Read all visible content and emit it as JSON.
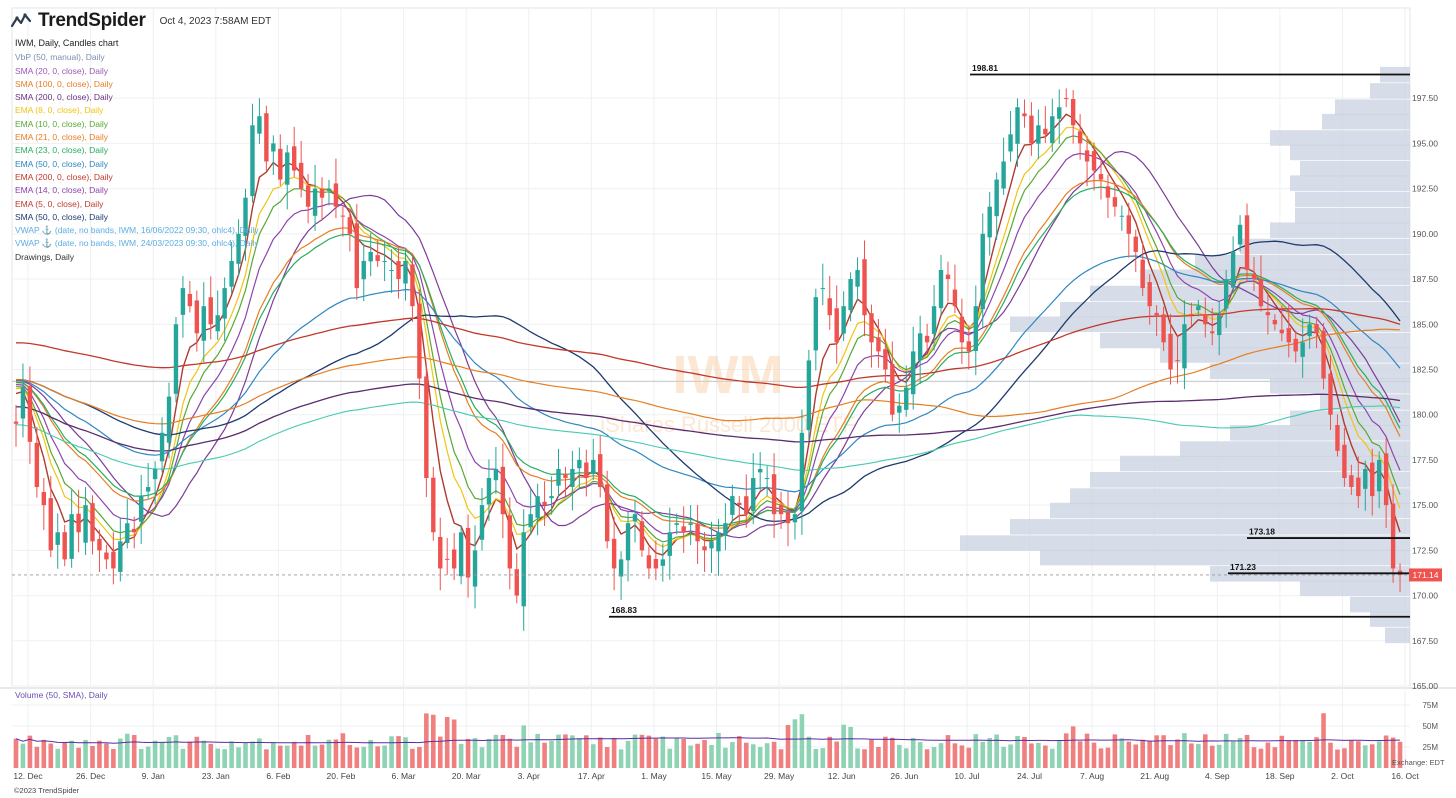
{
  "header": {
    "logo": "TrendSpider",
    "timestamp": "Oct 4, 2023 7:58AM EDT"
  },
  "legend": {
    "symbol_line": "IWM, Daily, Candles chart",
    "items": [
      {
        "label": "VbP (50, manual), Daily",
        "color": "#7b8fb0"
      },
      {
        "label": "SMA (20, 0, close), Daily",
        "color": "#9b59b6"
      },
      {
        "label": "SMA (100, 0, close), Daily",
        "color": "#e67e22"
      },
      {
        "label": "SMA (200, 0, close), Daily",
        "color": "#6c3483"
      },
      {
        "label": "EMA (8, 0, close), Daily",
        "color": "#f1c40f"
      },
      {
        "label": "EMA (10, 0, close), Daily",
        "color": "#58a832"
      },
      {
        "label": "EMA (21, 0, close), Daily",
        "color": "#e67e22"
      },
      {
        "label": "EMA (23, 0, close), Daily",
        "color": "#27ae60"
      },
      {
        "label": "EMA (50, 0, close), Daily",
        "color": "#2e86c1"
      },
      {
        "label": "EMA (200, 0, close), Daily",
        "color": "#c0392b"
      },
      {
        "label": "EMA (14, 0, close), Daily",
        "color": "#8e44ad"
      },
      {
        "label": "EMA (5, 0, close), Daily",
        "color": "#c0392b"
      },
      {
        "label": "SMA (50, 0, close), Daily",
        "color": "#1f3a6e"
      },
      {
        "label": "VWAP ⚓ (date, no bands, IWM, 16/06/2022 09:30, ohlc4), Daily",
        "color": "#5dade2"
      },
      {
        "label": "VWAP ⚓ (date, no bands, IWM, 24/03/2023 09:30, ohlc4), Daily",
        "color": "#5dade2"
      },
      {
        "label": "Drawings, Daily",
        "color": "#333333"
      }
    ]
  },
  "watermark": {
    "ticker": "IWM",
    "name": "iShares Russell 2000 ETF"
  },
  "volume_label": "Volume (50, SMA), Daily",
  "copyright": "©2023 TrendSpider",
  "exchange_label": "Exchange: EDT",
  "colors": {
    "up": "#26a69a",
    "down": "#ef5350",
    "vol_up": "#8fd3b5",
    "vol_down": "#f08080",
    "vbp": "#c9d2e0"
  },
  "chart_data": {
    "type": "candlestick",
    "price_axis": {
      "ticks": [
        "197.50",
        "195.00",
        "192.50",
        "190.00",
        "187.50",
        "185.00",
        "182.50",
        "180.00",
        "177.50",
        "175.00",
        "172.50",
        "170.00",
        "167.50",
        "165.00"
      ],
      "range": [
        165.0,
        199.5
      ]
    },
    "volume_axis": {
      "ticks": [
        "75M",
        "50M",
        "25M"
      ],
      "range": [
        0,
        75
      ]
    },
    "x_axis": {
      "labels": [
        "12. Dec",
        "26. Dec",
        "9. Jan",
        "23. Jan",
        "6. Feb",
        "20. Feb",
        "6. Mar",
        "20. Mar",
        "3. Apr",
        "17. Apr",
        "1. May",
        "15. May",
        "29. May",
        "12. Jun",
        "26. Jun",
        "10. Jul",
        "24. Jul",
        "7. Aug",
        "21. Aug",
        "4. Sep",
        "18. Sep",
        "2. Oct",
        "16. Oct"
      ],
      "label_trading_index": [
        0,
        9,
        18,
        27,
        36,
        45,
        54,
        63,
        72,
        81,
        90,
        99,
        108,
        117,
        126,
        135,
        144,
        153,
        162,
        171,
        180,
        189,
        198
      ]
    },
    "last_price": {
      "label": "171.14",
      "value": 171.14
    },
    "horizontal_levels": [
      {
        "label": "198.81",
        "value": 198.81
      },
      {
        "label": "173.18",
        "value": 173.18
      },
      {
        "label": "171.23",
        "value": 171.23
      },
      {
        "label": "168.83",
        "value": 168.83
      }
    ],
    "reference_line": 181.85,
    "closes": [
      179.5,
      181.5,
      178.5,
      176,
      175,
      172.5,
      173.5,
      172,
      174.5,
      173.5,
      175,
      173,
      172.5,
      172,
      171.5,
      173,
      174,
      173.5,
      175.5,
      176,
      177,
      179,
      181,
      185,
      187,
      186,
      184.5,
      186,
      185,
      185.5,
      187,
      188.5,
      190,
      192,
      196,
      196.5,
      194,
      195,
      193,
      194.5,
      193.5,
      192.5,
      191.5,
      192.5,
      192,
      192.5,
      191.5,
      191,
      190,
      187,
      188.5,
      189,
      188.5,
      188.5,
      188,
      187.5,
      188.5,
      186,
      182,
      176.5,
      173.5,
      171.5,
      172,
      171.5,
      173.5,
      171,
      172.5,
      175,
      176.5,
      177,
      174.5,
      171.5,
      170,
      173.5,
      174.5,
      175.5,
      175,
      175.5,
      177,
      176.5,
      177,
      177.5,
      176.5,
      177.5,
      176,
      173,
      171.5,
      172,
      174,
      174.5,
      172.5,
      171.5,
      171.5,
      172,
      173.5,
      174,
      173.5,
      174,
      173,
      172.5,
      173,
      173.5,
      174,
      175.5,
      175,
      174.5,
      176.5,
      177,
      176.5,
      174.5,
      174.5,
      174,
      174.5,
      179,
      183,
      186.5,
      187,
      185.5,
      184,
      186,
      187.5,
      188,
      185.5,
      184,
      183.5,
      182.5,
      180,
      180.5,
      181.5,
      183.5,
      184.5,
      184,
      186,
      188,
      187.5,
      186,
      184,
      183.5,
      186,
      190,
      191.5,
      193,
      194,
      195.5,
      197,
      196.5,
      195,
      196,
      195.5,
      196.5,
      197,
      197.5,
      196,
      195,
      194,
      193.5,
      193,
      192,
      191.5,
      191,
      190,
      189,
      187,
      186,
      185.5,
      184,
      182.5,
      183,
      185,
      185.5,
      186,
      185,
      184.5,
      185.5,
      187.5,
      189,
      190.5,
      188,
      187.5,
      186,
      185.5,
      185,
      184.5,
      184,
      183.5,
      184,
      185,
      184.5,
      182,
      180,
      178,
      176.5,
      176,
      175.5,
      177,
      175.5,
      177.5,
      175,
      171.5,
      171.14
    ]
  }
}
